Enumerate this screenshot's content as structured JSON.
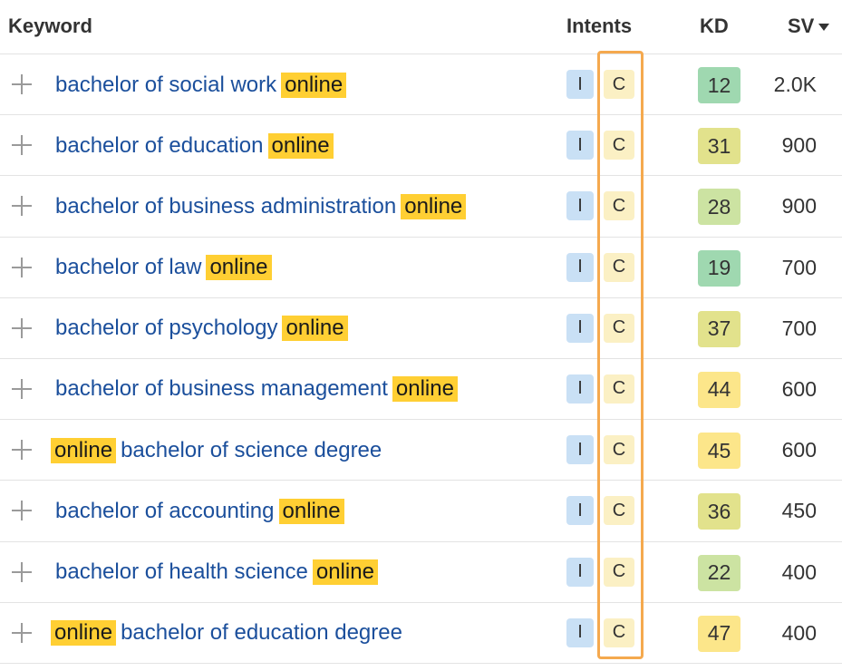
{
  "header": {
    "keyword": "Keyword",
    "intents": "Intents",
    "kd": "KD",
    "sv": "SV"
  },
  "icons": {
    "expand": "plus-icon",
    "sort": "caret-down-icon"
  },
  "colors": {
    "link": "#1b4f9c",
    "highlight": "#ffcf33",
    "intent_informational": "#c9e0f5",
    "intent_commercial": "#fbf0c4",
    "kd_green": "#9fd8b0",
    "kd_lightgreen": "#cce3a2",
    "kd_olive": "#e2e28c",
    "kd_yellow": "#fce68a",
    "focus_outline": "#f5a94e"
  },
  "rows": [
    {
      "before": "bachelor of social work",
      "highlight": "online",
      "after": "",
      "intent_i": "I",
      "intent_c": "C",
      "kd": "12",
      "kd_color": "#9fd8b0",
      "sv": "2.0K"
    },
    {
      "before": "bachelor of education",
      "highlight": "online",
      "after": "",
      "intent_i": "I",
      "intent_c": "C",
      "kd": "31",
      "kd_color": "#e2e28c",
      "sv": "900"
    },
    {
      "before": "bachelor of business administration",
      "highlight": "online",
      "after": "",
      "intent_i": "I",
      "intent_c": "C",
      "kd": "28",
      "kd_color": "#cce3a2",
      "sv": "900"
    },
    {
      "before": "bachelor of law",
      "highlight": "online",
      "after": "",
      "intent_i": "I",
      "intent_c": "C",
      "kd": "19",
      "kd_color": "#9fd8b0",
      "sv": "700"
    },
    {
      "before": "bachelor of psychology",
      "highlight": "online",
      "after": "",
      "intent_i": "I",
      "intent_c": "C",
      "kd": "37",
      "kd_color": "#e2e28c",
      "sv": "700"
    },
    {
      "before": "bachelor of business management",
      "highlight": "online",
      "after": "",
      "intent_i": "I",
      "intent_c": "C",
      "kd": "44",
      "kd_color": "#fce68a",
      "sv": "600"
    },
    {
      "before": "",
      "highlight": "online",
      "after": "bachelor of science degree",
      "intent_i": "I",
      "intent_c": "C",
      "kd": "45",
      "kd_color": "#fce68a",
      "sv": "600"
    },
    {
      "before": "bachelor of accounting",
      "highlight": "online",
      "after": "",
      "intent_i": "I",
      "intent_c": "C",
      "kd": "36",
      "kd_color": "#e2e28c",
      "sv": "450"
    },
    {
      "before": "bachelor of health science",
      "highlight": "online",
      "after": "",
      "intent_i": "I",
      "intent_c": "C",
      "kd": "22",
      "kd_color": "#cce3a2",
      "sv": "400"
    },
    {
      "before": "",
      "highlight": "online",
      "after": "bachelor of education degree",
      "intent_i": "I",
      "intent_c": "C",
      "kd": "47",
      "kd_color": "#fce68a",
      "sv": "400"
    }
  ]
}
